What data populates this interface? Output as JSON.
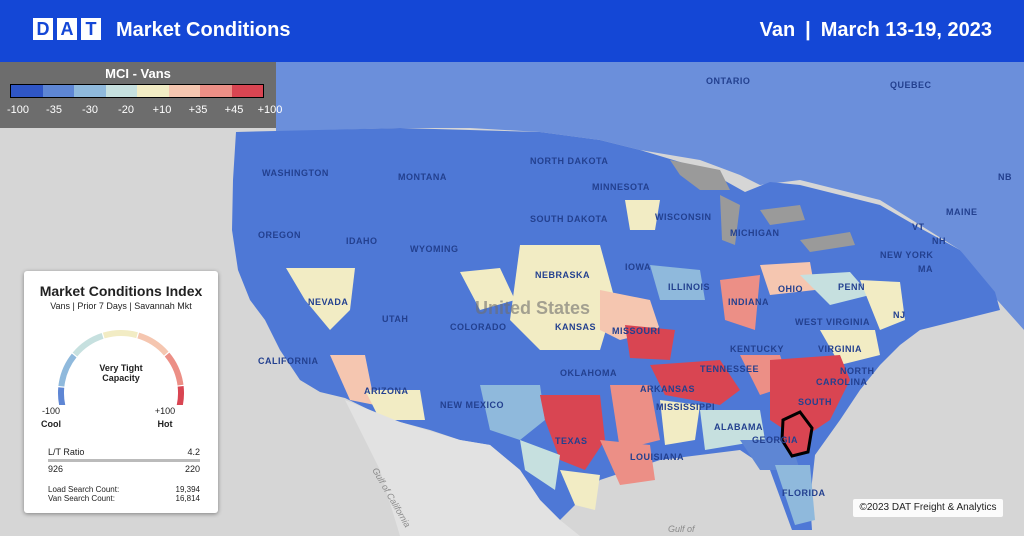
{
  "header": {
    "logo_letters": [
      "D",
      "A",
      "T"
    ],
    "title": "Market Conditions",
    "equipment": "Van",
    "separator": "|",
    "date_range": "March 13-19, 2023"
  },
  "legend": {
    "title": "MCI - Vans",
    "ticks": [
      "-100",
      "-35",
      "-30",
      "-20",
      "+10",
      "+35",
      "+45",
      "+100"
    ],
    "colors": [
      "#2f56c6",
      "#5e86d4",
      "#8fb9dc",
      "#c6e0df",
      "#f2ecc4",
      "#f5c6b0",
      "#ec8f86",
      "#d94552"
    ]
  },
  "panel": {
    "title": "Market Conditions Index",
    "subtitle": "Vans | Prior 7 Days | Savannah Mkt",
    "state": "Very Tight Capacity",
    "cool_value": "-100",
    "cool_label": "Cool",
    "hot_value": "+100",
    "hot_label": "Hot",
    "gauge_level": 0.97,
    "lt_ratio_label": "L/T Ratio",
    "lt_ratio_value": "4.2",
    "lt_left": "926",
    "lt_right": "220",
    "load_search_label": "Load Search Count:",
    "load_search_value": "19,394",
    "van_search_label": "Van Search Count:",
    "van_search_value": "16,814"
  },
  "map": {
    "country_label": "United States",
    "states": [
      "WASHINGTON",
      "OREGON",
      "IDAHO",
      "MONTANA",
      "WYOMING",
      "NEVADA",
      "UTAH",
      "COLORADO",
      "CALIFORNIA",
      "ARIZONA",
      "NEW MEXICO",
      "NORTH DAKOTA",
      "SOUTH DAKOTA",
      "NEBRASKA",
      "KANSAS",
      "OKLAHOMA",
      "TEXAS",
      "MINNESOTA",
      "IOWA",
      "MISSOURI",
      "ARKANSAS",
      "LOUISIANA",
      "WISCONSIN",
      "ILLINOIS",
      "INDIANA",
      "MICHIGAN",
      "OHIO",
      "KENTUCKY",
      "TENNESSEE",
      "MISSISSIPPI",
      "ALABAMA",
      "GEORGIA",
      "FLORIDA",
      "SOUTH",
      "CAROLINA",
      "NORTH",
      "VIRGINIA",
      "WEST VIRGINIA",
      "PENN",
      "NEW YORK",
      "MAINE",
      "NJ",
      "VT",
      "NH",
      "MA"
    ],
    "provinces": [
      "ONTARIO",
      "QUEBEC",
      "NB"
    ],
    "water": [
      "Gulf of California",
      "Gulf of"
    ]
  },
  "copyright": "©2023 DAT Freight & Analytics"
}
